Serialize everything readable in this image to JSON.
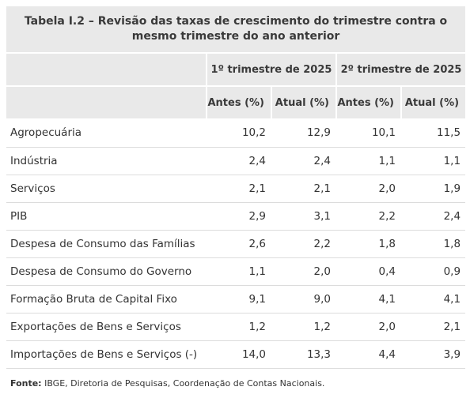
{
  "table": {
    "title": "Tabela I.2 – Revisão das taxas de crescimento do trimestre contra o mesmo trimestre do ano anterior",
    "groups": [
      "1º trimestre de 2025",
      "2º trimestre de 2025"
    ],
    "subheaders": [
      "Antes (%)",
      "Atual (%)",
      "Antes (%)",
      "Atual (%)"
    ],
    "rows": [
      {
        "label": "Agropecuária",
        "values": [
          "10,2",
          "12,9",
          "10,1",
          "11,5"
        ]
      },
      {
        "label": "Indústria",
        "values": [
          "2,4",
          "2,4",
          "1,1",
          "1,1"
        ]
      },
      {
        "label": "Serviços",
        "values": [
          "2,1",
          "2,1",
          "2,0",
          "1,9"
        ]
      },
      {
        "label": "PIB",
        "values": [
          "2,9",
          "3,1",
          "2,2",
          "2,4"
        ]
      },
      {
        "label": "Despesa de Consumo das Famílias",
        "values": [
          "2,6",
          "2,2",
          "1,8",
          "1,8"
        ]
      },
      {
        "label": "Despesa de Consumo do Governo",
        "values": [
          "1,1",
          "2,0",
          "0,4",
          "0,9"
        ]
      },
      {
        "label": "Formação Bruta de Capital Fixo",
        "values": [
          "9,1",
          "9,0",
          "4,1",
          "4,1"
        ]
      },
      {
        "label": "Exportações de Bens e Serviços",
        "values": [
          "1,2",
          "1,2",
          "2,0",
          "2,1"
        ]
      },
      {
        "label": "Importações de Bens e Serviços (-)",
        "values": [
          "14,0",
          "13,3",
          "4,4",
          "3,9"
        ]
      }
    ]
  },
  "footer": {
    "label": "Fonte:",
    "text": " IBGE, Diretoria de Pesquisas, Coordenação de Contas Nacionais."
  },
  "colors": {
    "header_bg": "#e9e9e9",
    "row_border": "#dcdcdc",
    "text": "#333333"
  }
}
